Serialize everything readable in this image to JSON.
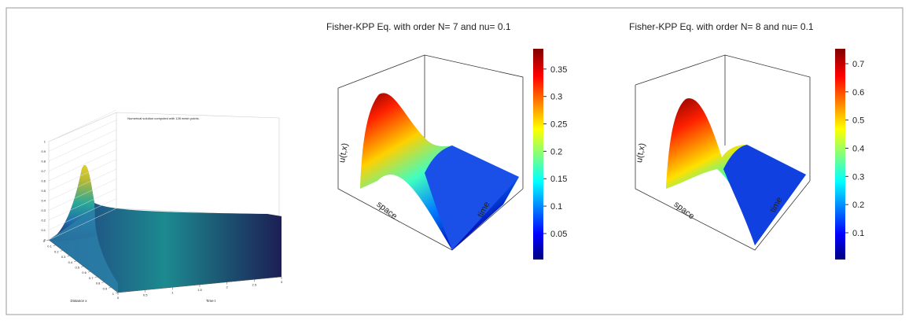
{
  "chart_data": [
    {
      "type": "surface",
      "title": "Numerical solution computed with 128 mesh points.",
      "x_label": "Distance x",
      "y_label": "Time t",
      "zlim": [
        0,
        1
      ],
      "zticks": [
        0,
        0.1,
        0.2,
        0.3,
        0.4,
        0.5,
        0.6,
        0.7,
        0.8,
        0.9,
        1
      ],
      "xlim": [
        0,
        1
      ],
      "xticks": [
        0,
        0.1,
        0.2,
        0.3,
        0.4,
        0.5,
        0.6,
        0.7,
        0.8,
        0.9,
        1
      ],
      "ylim": [
        0,
        3
      ],
      "yticks": [
        0,
        0.5,
        1,
        1.5,
        2,
        2.5,
        3
      ],
      "colormap": "parula"
    },
    {
      "type": "surface",
      "title": "Fisher-KPP Eq. with order N= 7  and nu= 0.1",
      "x_label": "space",
      "y_label": "time",
      "z_label": "u(t,x)",
      "colorbar": true,
      "colormap": "jet",
      "zlim": [
        0.0026,
        0.387
      ],
      "zticks": [
        0.05,
        0.1,
        0.15,
        0.2,
        0.25,
        0.3,
        0.35
      ]
    },
    {
      "type": "surface",
      "title": "Fisher-KPP Eq. with order N= 8  and nu= 0.1",
      "x_label": "space",
      "y_label": "time",
      "z_label": "u(t,x)",
      "colorbar": true,
      "colormap": "jet",
      "zlim": [
        0.005,
        0.753
      ],
      "zticks": [
        0.1,
        0.2,
        0.3,
        0.4,
        0.5,
        0.6,
        0.7
      ]
    }
  ]
}
